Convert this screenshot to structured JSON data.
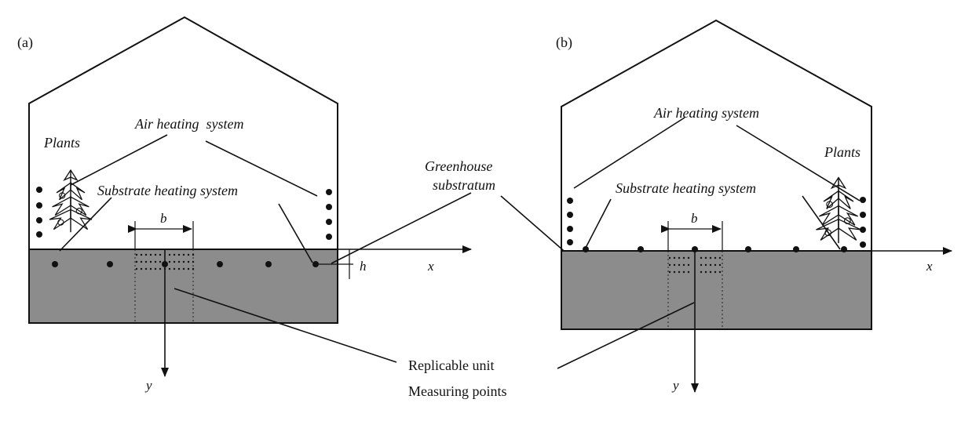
{
  "panel_a": {
    "tag": "(a)",
    "air_heating": "Air heating  system",
    "plants": "Plants",
    "substrate_heating": "Substrate heating system",
    "spacing": "b",
    "depth": "h",
    "x_axis": "x",
    "y_axis": "y"
  },
  "panel_b": {
    "tag": "(b)",
    "air_heating": "Air heating system",
    "plants": "Plants",
    "substrate_heating": "Substrate heating system",
    "spacing": "b",
    "x_axis": "x",
    "y_axis": "y"
  },
  "shared": {
    "substratum_line1": "Greenhouse",
    "substratum_line2": "substratum",
    "replicable_unit": "Replicable unit",
    "measuring_points": "Measuring points"
  },
  "colors": {
    "substrate_fill": "#8c8c8c",
    "stroke": "#111111"
  }
}
